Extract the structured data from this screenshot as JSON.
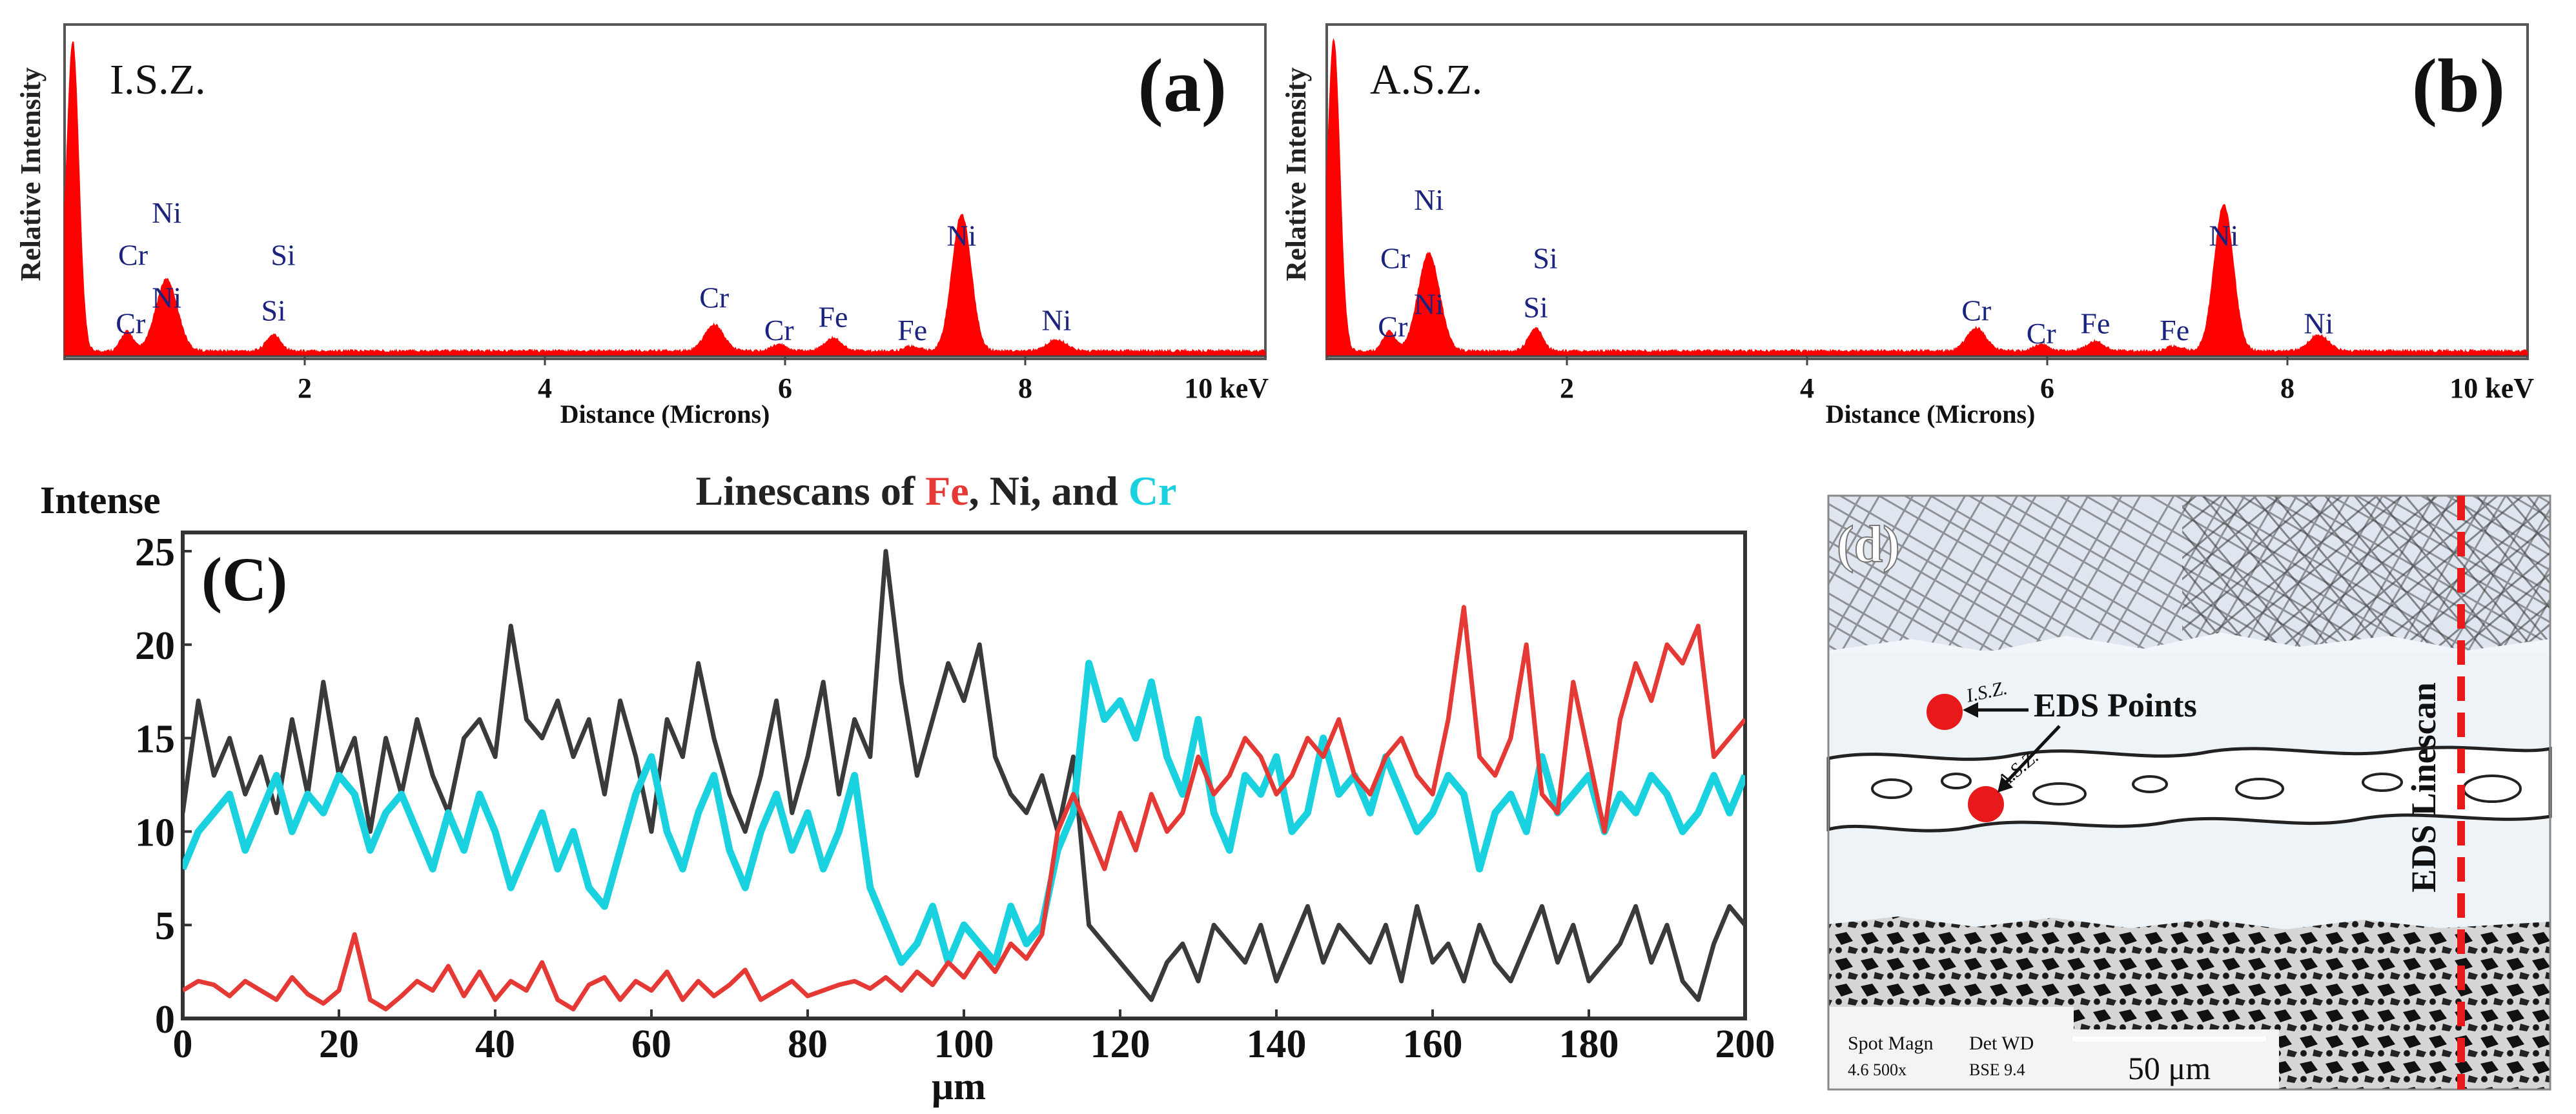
{
  "chart_data": [
    {
      "panel": "a",
      "type": "area",
      "panel_label": "(a)",
      "title": "I.S.Z.",
      "xlabel": "Distance (Microns)",
      "ylabel": "Relative Intensity",
      "xlim": [
        0,
        10
      ],
      "ylim": [
        0,
        100
      ],
      "x_ticks": [
        2,
        4,
        6,
        8
      ],
      "x_end_label": "10 keV",
      "series_color": "#ff0000",
      "spectrum": [
        {
          "x": 0.07,
          "y": 92,
          "w": 0.05
        },
        {
          "x": 0.52,
          "y": 6,
          "w": 0.05
        },
        {
          "x": 0.85,
          "y": 22,
          "w": 0.09
        },
        {
          "x": 1.74,
          "y": 5,
          "w": 0.06
        },
        {
          "x": 5.41,
          "y": 8,
          "w": 0.08
        },
        {
          "x": 5.95,
          "y": 2,
          "w": 0.06
        },
        {
          "x": 6.4,
          "y": 4,
          "w": 0.07
        },
        {
          "x": 7.06,
          "y": 1.5,
          "w": 0.06
        },
        {
          "x": 7.47,
          "y": 42,
          "w": 0.08
        },
        {
          "x": 8.26,
          "y": 3.5,
          "w": 0.08
        }
      ],
      "peak_labels": [
        {
          "label": "Ni",
          "x": 0.85,
          "y": 41
        },
        {
          "label": "Cr",
          "x": 0.57,
          "y": 28
        },
        {
          "label": "Si",
          "x": 1.82,
          "y": 28
        },
        {
          "label": "Ni",
          "x": 0.85,
          "y": 15
        },
        {
          "label": "Cr",
          "x": 0.55,
          "y": 7
        },
        {
          "label": "Si",
          "x": 1.74,
          "y": 11
        },
        {
          "label": "Cr",
          "x": 5.41,
          "y": 15
        },
        {
          "label": "Cr",
          "x": 5.95,
          "y": 5
        },
        {
          "label": "Fe",
          "x": 6.4,
          "y": 9
        },
        {
          "label": "Fe",
          "x": 7.06,
          "y": 5
        },
        {
          "label": "Ni",
          "x": 7.47,
          "y": 34
        },
        {
          "label": "Ni",
          "x": 8.26,
          "y": 8
        }
      ]
    },
    {
      "panel": "b",
      "type": "area",
      "panel_label": "(b)",
      "title": "A.S.Z.",
      "xlabel": "Distance (Microns)",
      "ylabel": "Relative Intensity",
      "xlim": [
        0,
        10
      ],
      "ylim": [
        0,
        100
      ],
      "x_ticks": [
        2,
        4,
        6,
        8
      ],
      "x_end_label": "10 keV",
      "series_color": "#ff0000",
      "spectrum": [
        {
          "x": 0.06,
          "y": 92,
          "w": 0.05
        },
        {
          "x": 0.52,
          "y": 6,
          "w": 0.05
        },
        {
          "x": 0.85,
          "y": 30,
          "w": 0.09
        },
        {
          "x": 1.74,
          "y": 7,
          "w": 0.06
        },
        {
          "x": 5.41,
          "y": 7,
          "w": 0.08
        },
        {
          "x": 5.95,
          "y": 2,
          "w": 0.06
        },
        {
          "x": 6.4,
          "y": 3,
          "w": 0.07
        },
        {
          "x": 7.06,
          "y": 1.5,
          "w": 0.06
        },
        {
          "x": 7.47,
          "y": 45,
          "w": 0.08
        },
        {
          "x": 8.26,
          "y": 5,
          "w": 0.08
        }
      ],
      "peak_labels": [
        {
          "label": "Ni",
          "x": 0.85,
          "y": 45
        },
        {
          "label": "Cr",
          "x": 0.57,
          "y": 27
        },
        {
          "label": "Si",
          "x": 1.82,
          "y": 27
        },
        {
          "label": "Ni",
          "x": 0.85,
          "y": 13
        },
        {
          "label": "Cr",
          "x": 0.55,
          "y": 6
        },
        {
          "label": "Si",
          "x": 1.74,
          "y": 12
        },
        {
          "label": "Cr",
          "x": 5.41,
          "y": 11
        },
        {
          "label": "Cr",
          "x": 5.95,
          "y": 4
        },
        {
          "label": "Fe",
          "x": 6.4,
          "y": 7
        },
        {
          "label": "Fe",
          "x": 7.06,
          "y": 5
        },
        {
          "label": "Ni",
          "x": 7.47,
          "y": 34
        },
        {
          "label": "Ni",
          "x": 8.26,
          "y": 7
        }
      ]
    },
    {
      "panel": "c",
      "type": "line",
      "panel_label": "(C)",
      "title_parts": [
        {
          "text": "Linescans of ",
          "color": "#222222"
        },
        {
          "text": "Fe",
          "color": "#e53935"
        },
        {
          "text": ", Ni, and ",
          "color": "#222222"
        },
        {
          "text": "Cr",
          "color": "#1ad1e0"
        }
      ],
      "ylabel": "Intense",
      "xlabel": "μm",
      "xlim": [
        0,
        200
      ],
      "ylim": [
        0,
        26
      ],
      "x_ticks": [
        0,
        20,
        40,
        60,
        80,
        100,
        120,
        140,
        160,
        180,
        200
      ],
      "y_ticks": [
        0,
        5,
        10,
        15,
        20,
        25
      ],
      "series": [
        {
          "name": "Ni",
          "color": "#3a3a3a",
          "x": [
            0,
            2,
            4,
            6,
            8,
            10,
            12,
            14,
            16,
            18,
            20,
            22,
            24,
            26,
            28,
            30,
            32,
            34,
            36,
            38,
            40,
            42,
            44,
            46,
            48,
            50,
            52,
            54,
            56,
            58,
            60,
            62,
            64,
            66,
            68,
            70,
            72,
            74,
            76,
            78,
            80,
            82,
            84,
            86,
            88,
            90,
            92,
            94,
            96,
            98,
            100,
            102,
            104,
            106,
            108,
            110,
            112,
            114,
            116,
            118,
            120,
            122,
            124,
            126,
            128,
            130,
            132,
            134,
            136,
            138,
            140,
            142,
            144,
            146,
            148,
            150,
            152,
            154,
            156,
            158,
            160,
            162,
            164,
            166,
            168,
            170,
            172,
            174,
            176,
            178,
            180,
            182,
            184,
            186,
            188,
            190,
            192,
            194,
            196,
            198,
            200
          ],
          "values": [
            11,
            17,
            13,
            15,
            12,
            14,
            11,
            16,
            12,
            18,
            13,
            15,
            10,
            15,
            12,
            16,
            13,
            11,
            15,
            16,
            14,
            21,
            16,
            15,
            17,
            14,
            16,
            12,
            17,
            14,
            10,
            16,
            14,
            19,
            15,
            12,
            10,
            13,
            17,
            11,
            14,
            18,
            12,
            16,
            14,
            25,
            18,
            13,
            16,
            19,
            17,
            20,
            14,
            12,
            11,
            13,
            10,
            14,
            5,
            4,
            3,
            2,
            1,
            3,
            4,
            2,
            5,
            4,
            3,
            5,
            2,
            4,
            6,
            3,
            5,
            4,
            3,
            5,
            2,
            6,
            3,
            4,
            2,
            5,
            3,
            2,
            4,
            6,
            3,
            5,
            2,
            3,
            4,
            6,
            3,
            5,
            2,
            1,
            4,
            6,
            5
          ]
        },
        {
          "name": "Cr",
          "color": "#1ad1e0",
          "x": [
            0,
            2,
            4,
            6,
            8,
            10,
            12,
            14,
            16,
            18,
            20,
            22,
            24,
            26,
            28,
            30,
            32,
            34,
            36,
            38,
            40,
            42,
            44,
            46,
            48,
            50,
            52,
            54,
            56,
            58,
            60,
            62,
            64,
            66,
            68,
            70,
            72,
            74,
            76,
            78,
            80,
            82,
            84,
            86,
            88,
            90,
            92,
            94,
            96,
            98,
            100,
            102,
            104,
            106,
            108,
            110,
            112,
            114,
            116,
            118,
            120,
            122,
            124,
            126,
            128,
            130,
            132,
            134,
            136,
            138,
            140,
            142,
            144,
            146,
            148,
            150,
            152,
            154,
            156,
            158,
            160,
            162,
            164,
            166,
            168,
            170,
            172,
            174,
            176,
            178,
            180,
            182,
            184,
            186,
            188,
            190,
            192,
            194,
            196,
            198,
            200
          ],
          "values": [
            8,
            10,
            11,
            12,
            9,
            11,
            13,
            10,
            12,
            11,
            13,
            12,
            9,
            11,
            12,
            10,
            8,
            11,
            9,
            12,
            10,
            7,
            9,
            11,
            8,
            10,
            7,
            6,
            9,
            12,
            14,
            10,
            8,
            11,
            13,
            9,
            7,
            10,
            12,
            9,
            11,
            8,
            10,
            13,
            7,
            5,
            3,
            4,
            6,
            3,
            5,
            4,
            3,
            6,
            4,
            5,
            9,
            11,
            19,
            16,
            17,
            15,
            18,
            14,
            12,
            16,
            11,
            9,
            13,
            12,
            14,
            10,
            11,
            15,
            12,
            13,
            11,
            14,
            12,
            10,
            11,
            13,
            12,
            8,
            11,
            12,
            10,
            14,
            11,
            12,
            13,
            10,
            12,
            11,
            13,
            12,
            10,
            11,
            13,
            11,
            13
          ]
        },
        {
          "name": "Fe",
          "color": "#e53935",
          "x": [
            0,
            2,
            4,
            6,
            8,
            10,
            12,
            14,
            16,
            18,
            20,
            22,
            24,
            26,
            28,
            30,
            32,
            34,
            36,
            38,
            40,
            42,
            44,
            46,
            48,
            50,
            52,
            54,
            56,
            58,
            60,
            62,
            64,
            66,
            68,
            70,
            72,
            74,
            76,
            78,
            80,
            82,
            84,
            86,
            88,
            90,
            92,
            94,
            96,
            98,
            100,
            102,
            104,
            106,
            108,
            110,
            112,
            114,
            116,
            118,
            120,
            122,
            124,
            126,
            128,
            130,
            132,
            134,
            136,
            138,
            140,
            142,
            144,
            146,
            148,
            150,
            152,
            154,
            156,
            158,
            160,
            162,
            164,
            166,
            168,
            170,
            172,
            174,
            176,
            178,
            180,
            182,
            184,
            186,
            188,
            190,
            192,
            194,
            196,
            198,
            200
          ],
          "values": [
            1.5,
            2,
            1.8,
            1.2,
            2,
            1.5,
            1,
            2.2,
            1.3,
            0.8,
            1.5,
            4.5,
            1,
            0.5,
            1.2,
            2,
            1.5,
            2.8,
            1.2,
            2.5,
            1,
            2,
            1.5,
            3,
            1,
            0.5,
            1.8,
            2.2,
            1,
            2,
            1.5,
            2.5,
            1,
            2,
            1.2,
            1.8,
            2.6,
            1,
            1.5,
            2,
            1.2,
            1.5,
            1.8,
            2,
            1.6,
            2.2,
            1.5,
            2.5,
            1.8,
            3,
            2.2,
            3.5,
            2.5,
            4,
            3.2,
            4.5,
            10,
            12,
            10,
            8,
            11,
            9,
            12,
            10,
            11,
            14,
            12,
            13,
            15,
            14,
            12,
            13,
            15,
            14,
            16,
            13,
            12,
            14,
            15,
            13,
            12,
            16,
            22,
            14,
            13,
            15,
            20,
            12,
            11,
            18,
            14,
            10,
            16,
            19,
            17,
            20,
            19,
            21,
            14,
            15,
            16
          ]
        }
      ]
    },
    {
      "panel": "d",
      "type": "micrograph",
      "panel_label": "(d)",
      "callout": "EDS Points",
      "point_labels": [
        "I.S.Z.",
        "A.S.Z."
      ],
      "vertical_label": "EDS Linescan",
      "scale_bar": "50 μm",
      "meta_left_top": "Spot Magn",
      "meta_left_bottom": "4.6 500x",
      "meta_right_top": "Det WD",
      "meta_right_bottom": "BSE 9.4",
      "marker_color": "#e8191a",
      "line_color": "#e8191a"
    }
  ]
}
